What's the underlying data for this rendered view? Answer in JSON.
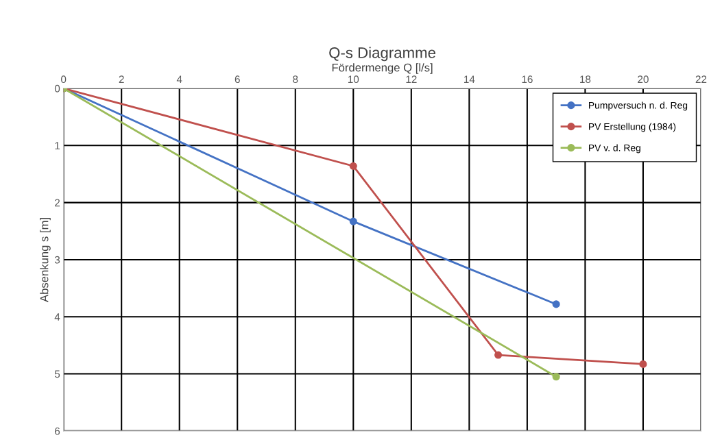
{
  "chart_data": {
    "type": "line",
    "title": "Q-s Diagramme",
    "xlabel": "Fördermenge Q [l/s]",
    "ylabel": "Absenkung s [m]",
    "series": [
      {
        "name": "Pumpversuch n. d. Reg",
        "color": "#4472c4",
        "x": [
          0,
          10,
          17
        ],
        "values": [
          0,
          2.33,
          3.78
        ]
      },
      {
        "name": "PV Erstellung (1984)",
        "color": "#c0504d",
        "x": [
          0,
          10,
          15,
          20
        ],
        "values": [
          0,
          1.36,
          4.67,
          4.83
        ]
      },
      {
        "name": "PV v. d. Reg",
        "color": "#9bbb59",
        "x": [
          0,
          17
        ],
        "values": [
          0,
          5.05
        ]
      }
    ],
    "xlim": [
      0,
      22
    ],
    "xticks": [
      0,
      2,
      4,
      6,
      8,
      10,
      12,
      14,
      16,
      18,
      20,
      22
    ],
    "ylim": [
      6,
      0
    ],
    "yticks": [
      0,
      1,
      2,
      3,
      4,
      5,
      6
    ],
    "grid": true,
    "legend": "top right",
    "marker": "circle",
    "line_style": "solid"
  }
}
